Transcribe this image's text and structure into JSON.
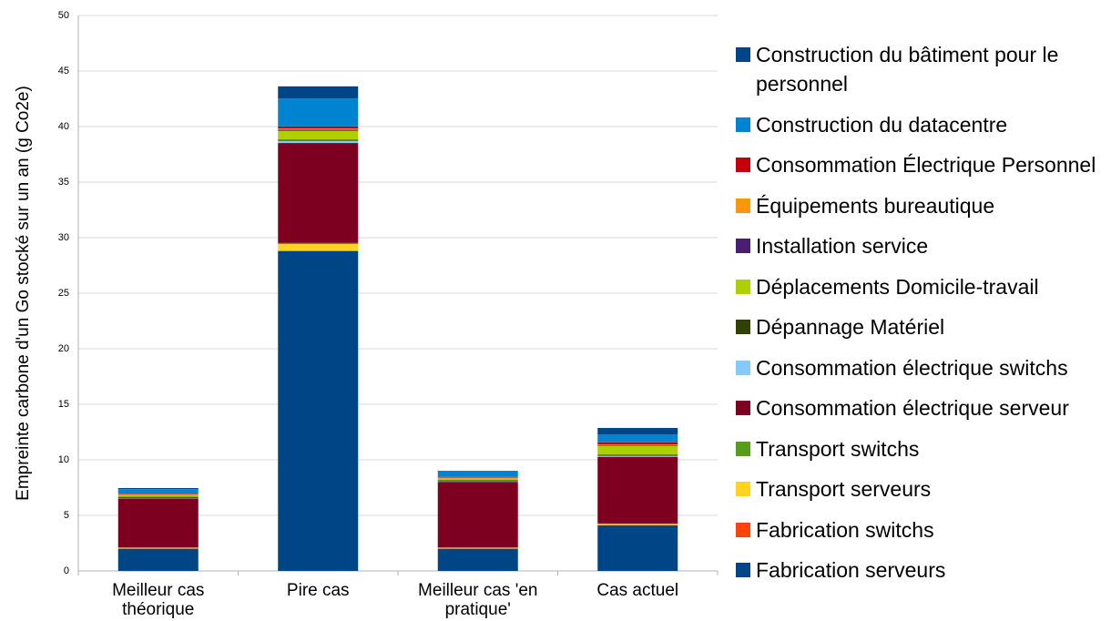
{
  "chart_data": {
    "type": "bar",
    "stacked": true,
    "y_label": "Empreinte carbone d'un Go stocké sur un an (g Co2e)",
    "categories": [
      "Meilleur cas théorique",
      "Pire cas",
      "Meilleur cas 'en pratique'",
      "Cas actuel"
    ],
    "ylim": [
      0,
      50
    ],
    "yticks": [
      0,
      5,
      10,
      15,
      20,
      25,
      30,
      35,
      40,
      45,
      50
    ],
    "grid": true,
    "legend": "right",
    "series": [
      {
        "name": "Fabrication serveurs",
        "color": "#004586",
        "values": [
          2.0,
          28.8,
          2.0,
          4.1
        ]
      },
      {
        "name": "Fabrication switchs",
        "color": "#ff420e",
        "values": [
          0.02,
          0.02,
          0.02,
          0.02
        ]
      },
      {
        "name": "Transport serveurs",
        "color": "#ffd320",
        "values": [
          0.05,
          0.6,
          0.05,
          0.1
        ]
      },
      {
        "name": "Transport switchs",
        "color": "#579d1c",
        "values": [
          0.05,
          0.1,
          0.05,
          0.05
        ]
      },
      {
        "name": "Consommation électrique serveur",
        "color": "#7e0021",
        "values": [
          4.4,
          9.0,
          5.9,
          6.0
        ]
      },
      {
        "name": "Consommation électrique switchs",
        "color": "#83caff",
        "values": [
          0.05,
          0.2,
          0.05,
          0.1
        ]
      },
      {
        "name": "Dépannage Matériel",
        "color": "#314004",
        "values": [
          0.1,
          0.1,
          0.1,
          0.1
        ]
      },
      {
        "name": "Déplacements Domicile-travail",
        "color": "#aecf00",
        "values": [
          0.2,
          0.8,
          0.2,
          0.8
        ]
      },
      {
        "name": "Installation service",
        "color": "#4b1f6f",
        "values": [
          0.02,
          0.1,
          0.02,
          0.05
        ]
      },
      {
        "name": "Équipements bureautique",
        "color": "#ff950e",
        "values": [
          0.02,
          0.1,
          0.02,
          0.05
        ]
      },
      {
        "name": "Consommation Électrique Personnel",
        "color": "#c5000b",
        "values": [
          0.05,
          0.2,
          0.05,
          0.2
        ]
      },
      {
        "name": "Construction du datacentre",
        "color": "#0084d1",
        "values": [
          0.4,
          2.5,
          0.5,
          0.7
        ]
      },
      {
        "name": "Construction du bâtiment pour le personnel",
        "color": "#004586",
        "values": [
          0.1,
          1.1,
          0.05,
          0.6
        ]
      }
    ]
  }
}
